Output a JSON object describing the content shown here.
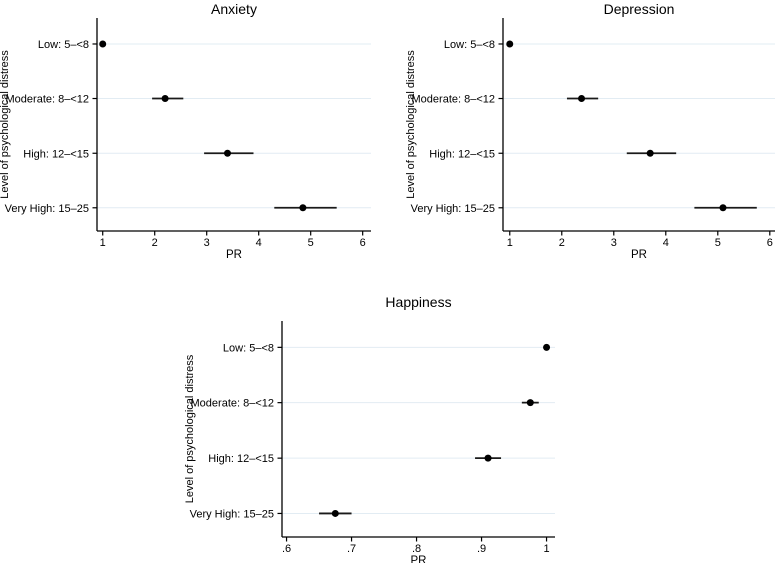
{
  "figure": {
    "background": "#ffffff",
    "axis_color": "#000000",
    "grid_color": "#e2ecf3",
    "point_color": "#000000",
    "ci_color": "#1a1a1a"
  },
  "chart_data": [
    {
      "type": "scatter",
      "title": "Anxiety",
      "xlabel": "PR",
      "ylabel": "Level of psychological distress",
      "grid": true,
      "legend": "none",
      "categories": [
        "Low: 5–<8",
        "Moderate: 8–<12",
        "High: 12–<15",
        "Very High: 15–25"
      ],
      "points": [
        {
          "category": "Low: 5–<8",
          "pr": 1.0,
          "ci_low": 1.0,
          "ci_high": 1.0
        },
        {
          "category": "Moderate: 8–<12",
          "pr": 2.2,
          "ci_low": 1.95,
          "ci_high": 2.55
        },
        {
          "category": "High: 12–<15",
          "pr": 3.4,
          "ci_low": 2.95,
          "ci_high": 3.9
        },
        {
          "category": "Very High: 15–25",
          "pr": 4.85,
          "ci_low": 4.3,
          "ci_high": 5.5
        }
      ],
      "xticks": [
        1,
        2,
        3,
        4,
        5,
        6
      ],
      "xtick_labels": [
        "1",
        "2",
        "3",
        "4",
        "5",
        "6"
      ],
      "xlim": [
        0.89,
        6.16
      ]
    },
    {
      "type": "scatter",
      "title": "Depression",
      "xlabel": "PR",
      "ylabel": "Level of psychological distress",
      "grid": true,
      "legend": "none",
      "categories": [
        "Low: 5–<8",
        "Moderate: 8–<12",
        "High: 12–<15",
        "Very High: 15–25"
      ],
      "points": [
        {
          "category": "Low: 5–<8",
          "pr": 1.0,
          "ci_low": 1.0,
          "ci_high": 1.0
        },
        {
          "category": "Moderate: 8–<12",
          "pr": 2.38,
          "ci_low": 2.1,
          "ci_high": 2.7
        },
        {
          "category": "High: 12–<15",
          "pr": 3.7,
          "ci_low": 3.25,
          "ci_high": 4.2
        },
        {
          "category": "Very High: 15–25",
          "pr": 5.1,
          "ci_low": 4.55,
          "ci_high": 5.75
        }
      ],
      "xticks": [
        1,
        2,
        3,
        4,
        5,
        6
      ],
      "xtick_labels": [
        "1",
        "2",
        "3",
        "4",
        "5",
        "6"
      ],
      "xlim": [
        0.87,
        6.1
      ]
    },
    {
      "type": "scatter",
      "title": "Happiness",
      "xlabel": "PR",
      "ylabel": "Level of psychological distress",
      "grid": true,
      "legend": "none",
      "categories": [
        "Low: 5–<8",
        "Moderate: 8–<12",
        "High: 12–<15",
        "Very High: 15–25"
      ],
      "points": [
        {
          "category": "Low: 5–<8",
          "pr": 1.0,
          "ci_low": 1.0,
          "ci_high": 1.0
        },
        {
          "category": "Moderate: 8–<12",
          "pr": 0.975,
          "ci_low": 0.962,
          "ci_high": 0.988
        },
        {
          "category": "High: 12–<15",
          "pr": 0.91,
          "ci_low": 0.89,
          "ci_high": 0.93
        },
        {
          "category": "Very High: 15–25",
          "pr": 0.675,
          "ci_low": 0.65,
          "ci_high": 0.7
        }
      ],
      "xticks": [
        0.6,
        0.7,
        0.8,
        0.9,
        1
      ],
      "xtick_labels": [
        ".6",
        ".7",
        ".8",
        ".9",
        "1"
      ],
      "xlim": [
        0.593,
        1.013
      ]
    }
  ]
}
